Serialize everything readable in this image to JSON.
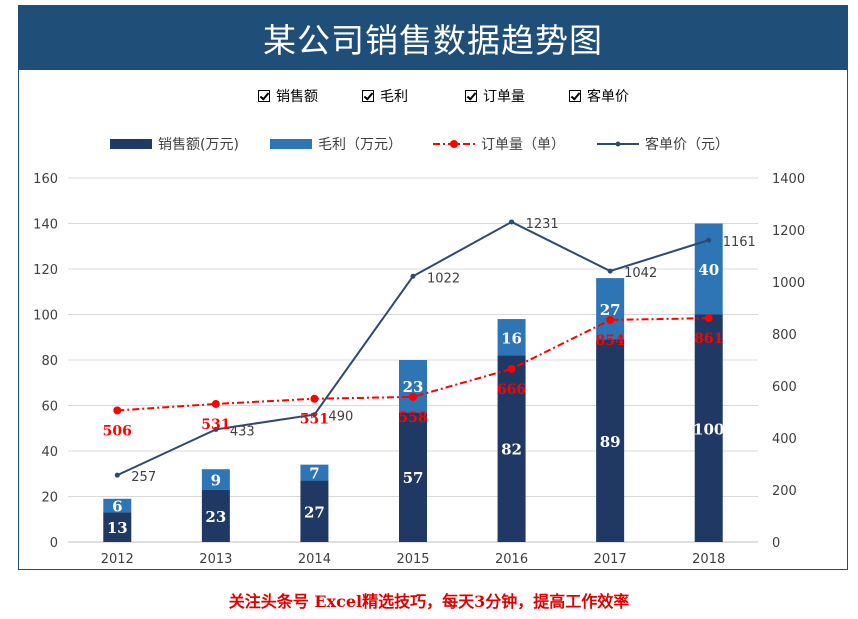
{
  "title": "某公司销售数据趋势图",
  "checkboxes": [
    {
      "label": "销售额",
      "checked": true
    },
    {
      "label": "毛利",
      "checked": true
    },
    {
      "label": "订单量",
      "checked": true
    },
    {
      "label": "客单价",
      "checked": true
    }
  ],
  "footer": "关注头条号 Excel精选技巧，每天3分钟，提高工作效率",
  "colors": {
    "sales": "#1f3864",
    "profit": "#2e75b6",
    "orders": "#ff0000",
    "price": "#2f4a70",
    "grid": "#d9d9d9",
    "title_bg": "#1f4e79"
  },
  "chart_data": {
    "type": "bar",
    "categories": [
      "2012",
      "2013",
      "2014",
      "2015",
      "2016",
      "2017",
      "2018"
    ],
    "series": [
      {
        "name": "销售额(万元)",
        "kind": "stacked-bar",
        "axis": "left",
        "values": [
          13,
          23,
          27,
          57,
          82,
          89,
          100
        ]
      },
      {
        "name": "毛利（万元）",
        "kind": "stacked-bar",
        "axis": "left",
        "values": [
          6,
          9,
          7,
          23,
          16,
          27,
          40
        ]
      },
      {
        "name": "订单量（单）",
        "kind": "line-dashdot",
        "axis": "right",
        "values": [
          506,
          531,
          551,
          558,
          666,
          854,
          861
        ]
      },
      {
        "name": "客单价（元）",
        "kind": "line",
        "axis": "right",
        "values": [
          257,
          433,
          490,
          1022,
          1231,
          1042,
          1161
        ]
      }
    ],
    "y_left": {
      "min": 0,
      "max": 160,
      "ticks": [
        "0",
        "20",
        "40",
        "60",
        "80",
        "100",
        "120",
        "140",
        "160"
      ]
    },
    "y_right": {
      "min": 0,
      "max": 1400,
      "ticks": [
        "0",
        "200",
        "400",
        "600",
        "800",
        "1000",
        "1200",
        "1400"
      ]
    },
    "legend": [
      "销售额(万元)",
      "毛利（万元）",
      "订单量（单）",
      "客单价（元）"
    ],
    "legend_position": "top",
    "grid": true
  }
}
